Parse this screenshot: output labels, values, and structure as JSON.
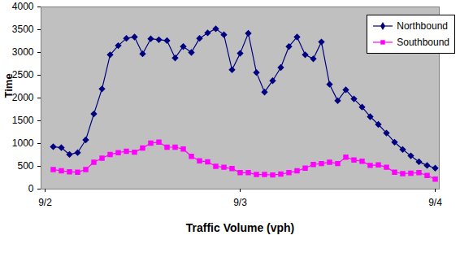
{
  "chart_data": {
    "type": "line",
    "x_label": "Traffic Volume (vph)",
    "y_label": "Time",
    "categories": [
      "9/2",
      null,
      null,
      null,
      null,
      null,
      null,
      null,
      null,
      null,
      null,
      null,
      null,
      null,
      null,
      null,
      null,
      null,
      null,
      null,
      null,
      null,
      null,
      null,
      "9/3",
      null,
      null,
      null,
      null,
      null,
      null,
      null,
      null,
      null,
      null,
      null,
      null,
      null,
      null,
      null,
      null,
      null,
      null,
      null,
      null,
      null,
      null,
      null,
      "9/4"
    ],
    "series": [
      {
        "name": "Northbound",
        "color": "#000080",
        "marker": "diamond",
        "line_style": "solid",
        "values": [
          null,
          930,
          910,
          760,
          800,
          1080,
          1650,
          2200,
          2950,
          3150,
          3310,
          3340,
          2970,
          3300,
          3280,
          3260,
          2880,
          3130,
          3000,
          3310,
          3430,
          3520,
          3390,
          2620,
          2980,
          3420,
          2560,
          2130,
          2380,
          2670,
          3130,
          3340,
          2950,
          2860,
          3230,
          2300,
          1940,
          2180,
          1980,
          1800,
          1590,
          1420,
          1230,
          1030,
          870,
          730,
          600,
          520,
          460
        ]
      },
      {
        "name": "Southbound",
        "color": "#FF00FF",
        "marker": "square",
        "line_style": "solid",
        "values": [
          null,
          430,
          400,
          380,
          370,
          430,
          590,
          680,
          760,
          800,
          830,
          810,
          900,
          1010,
          1030,
          920,
          920,
          880,
          720,
          620,
          600,
          500,
          480,
          450,
          360,
          360,
          320,
          320,
          310,
          330,
          360,
          400,
          460,
          540,
          560,
          590,
          560,
          700,
          640,
          610,
          520,
          530,
          480,
          370,
          340,
          350,
          360,
          300,
          220
        ]
      }
    ],
    "ylim": [
      0,
      4000
    ],
    "yticks": [
      0,
      500,
      1000,
      1500,
      2000,
      2500,
      3000,
      3500,
      4000
    ],
    "grid": false,
    "legend": "top-right"
  }
}
